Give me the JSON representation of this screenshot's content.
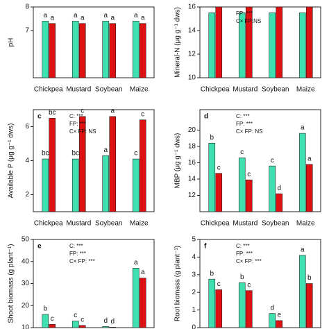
{
  "chart_data": [
    {
      "type": "bar",
      "ylabel": "pH",
      "categories": [
        "Chickpea",
        "Mustard",
        "Soybean",
        "Maize"
      ],
      "ylim": [
        5,
        8
      ],
      "yticks": [
        7,
        8
      ],
      "series": [
        {
          "color": "#3fe0b0",
          "values": [
            7.4,
            7.4,
            7.4,
            7.4
          ],
          "letters": [
            "a",
            "a",
            "a",
            "a"
          ]
        },
        {
          "color": "#dd1111",
          "values": [
            7.3,
            7.3,
            7.3,
            7.3
          ],
          "letters": [
            "a",
            "a",
            "a",
            "a"
          ]
        }
      ],
      "annotations": []
    },
    {
      "type": "bar",
      "ylabel": "Mineral-N (μg g⁻¹ dws)",
      "categories": [
        "Chickpea",
        "Mustard",
        "Soybean",
        "Maize"
      ],
      "ylim": [
        10,
        16
      ],
      "yticks": [
        10,
        12,
        14,
        16
      ],
      "series": [
        {
          "color": "#3fe0b0",
          "values": [
            15.5,
            15.5,
            15.5,
            15.5
          ],
          "letters": []
        },
        {
          "color": "#dd1111",
          "values": [
            16,
            16,
            16,
            16
          ],
          "letters": []
        }
      ],
      "annotations": [
        "FP: ***",
        "C× FP:NS"
      ]
    },
    {
      "type": "bar",
      "panel_label": "c",
      "ylabel": "Available P (μg g⁻¹ dws)",
      "categories": [
        "Chickpea",
        "Mustard",
        "Soybean",
        "Maize"
      ],
      "ylim": [
        1,
        7
      ],
      "yticks": [
        2,
        4,
        6
      ],
      "series": [
        {
          "color": "#3fe0b0",
          "values": [
            4.1,
            4.1,
            4.3,
            4.1
          ],
          "letters": [
            "bc",
            "bc",
            "a",
            "c"
          ]
        },
        {
          "color": "#dd1111",
          "values": [
            6.5,
            6.6,
            6.6,
            6.4
          ],
          "letters": [
            "bc",
            "c",
            "a",
            "c"
          ]
        }
      ],
      "annotations": [
        "C: ***",
        "FP: ***",
        "C× FP: NS"
      ]
    },
    {
      "type": "bar",
      "panel_label": "d",
      "ylabel": "MBP (μg g⁻¹ dws)",
      "categories": [
        "Chickpea",
        "Mustard",
        "Soybean",
        "Maize"
      ],
      "ylim": [
        10,
        22.5
      ],
      "yticks": [
        12,
        14,
        16,
        18,
        20
      ],
      "series": [
        {
          "color": "#3fe0b0",
          "values": [
            18.4,
            16.6,
            15.6,
            19.6
          ],
          "letters": [
            "b",
            "c",
            "c",
            "a"
          ]
        },
        {
          "color": "#dd1111",
          "values": [
            14.7,
            13.9,
            12.2,
            15.8
          ],
          "letters": [
            "c",
            "c",
            "d",
            "a"
          ]
        }
      ],
      "annotations": [
        "C: ***",
        "FP: ***",
        "C× FP: NS"
      ]
    },
    {
      "type": "bar",
      "panel_label": "e",
      "ylabel": "Shoot biomass (g plant⁻¹)",
      "categories": [
        "Chickpea",
        "Mustard",
        "Soybean",
        "Maize"
      ],
      "ylim": [
        10,
        50
      ],
      "yticks": [
        10,
        20,
        30,
        40,
        50
      ],
      "series": [
        {
          "color": "#3fe0b0",
          "values": [
            16,
            13,
            10.5,
            37
          ],
          "letters": [
            "b",
            "c",
            "d",
            "a"
          ]
        },
        {
          "color": "#dd1111",
          "values": [
            11.5,
            11,
            10.2,
            32.5
          ],
          "letters": [
            "c",
            "c",
            "d",
            "a"
          ]
        }
      ],
      "annotations": [
        "C: ***",
        "FP: ***",
        "C× FP: ***"
      ]
    },
    {
      "type": "bar",
      "panel_label": "f",
      "ylabel": "Root biomass (g plant⁻¹)",
      "categories": [
        "Chickpea",
        "Mustard",
        "Soybean",
        "Maize"
      ],
      "ylim": [
        0,
        5
      ],
      "yticks": [
        0,
        1,
        2,
        3,
        4,
        5
      ],
      "series": [
        {
          "color": "#3fe0b0",
          "values": [
            2.75,
            2.55,
            0.8,
            4.1
          ],
          "letters": [
            "b",
            "b",
            "d",
            "a"
          ]
        },
        {
          "color": "#dd1111",
          "values": [
            2.15,
            2.1,
            0.4,
            2.5
          ],
          "letters": [
            "c",
            "c",
            "e",
            "b"
          ]
        }
      ],
      "annotations": [
        "C: ***",
        "FP: ***",
        "C× FP: ***"
      ]
    }
  ]
}
